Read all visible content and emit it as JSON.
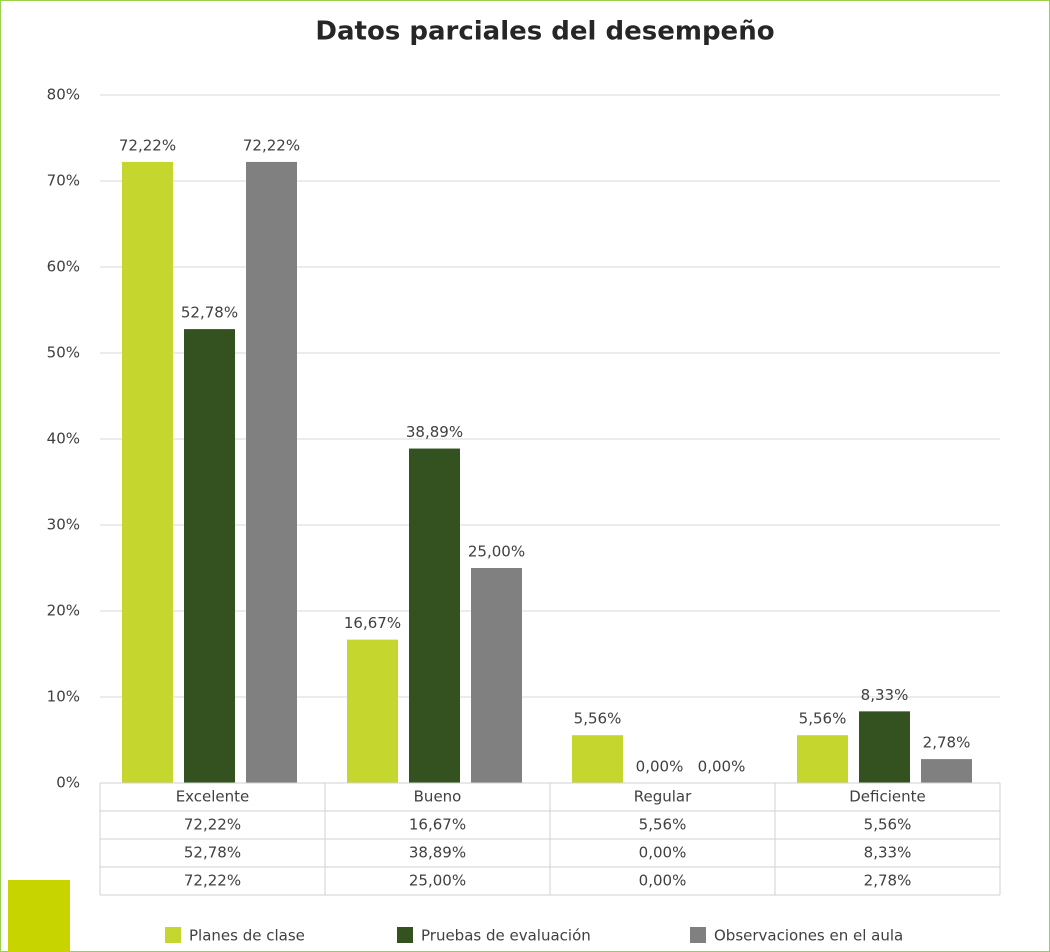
{
  "chart_data": {
    "type": "bar",
    "title": "Datos parciales del desempeño",
    "categories": [
      "Excelente",
      "Bueno",
      "Regular",
      "Deficiente"
    ],
    "series": [
      {
        "name": "Planes de clase",
        "color": "#c5d62f",
        "values": [
          72.22,
          16.67,
          5.56,
          5.56
        ],
        "value_labels": [
          "72,22%",
          "16,67%",
          "5,56%",
          "5,56%"
        ]
      },
      {
        "name": "Pruebas de evaluación",
        "color": "#33521f",
        "values": [
          52.78,
          38.89,
          0,
          8.33
        ],
        "value_labels": [
          "52,78%",
          "38,89%",
          "0,00%",
          "8,33%"
        ]
      },
      {
        "name": "Observaciones en el aula",
        "color": "#808080",
        "values": [
          72.22,
          25.0,
          0,
          2.78
        ],
        "value_labels": [
          "72,22%",
          "25,00%",
          "0,00%",
          "2,78%"
        ]
      }
    ],
    "ylim": [
      0,
      80
    ],
    "yticks": [
      {
        "value": 0,
        "label": "0%"
      },
      {
        "value": 10,
        "label": "10%"
      },
      {
        "value": 20,
        "label": "20%"
      },
      {
        "value": 30,
        "label": "30%"
      },
      {
        "value": 40,
        "label": "40%"
      },
      {
        "value": 50,
        "label": "50%"
      },
      {
        "value": 60,
        "label": "60%"
      },
      {
        "value": 70,
        "label": "70%"
      },
      {
        "value": 80,
        "label": "80%"
      }
    ],
    "grid": true,
    "legend": "bottom"
  }
}
